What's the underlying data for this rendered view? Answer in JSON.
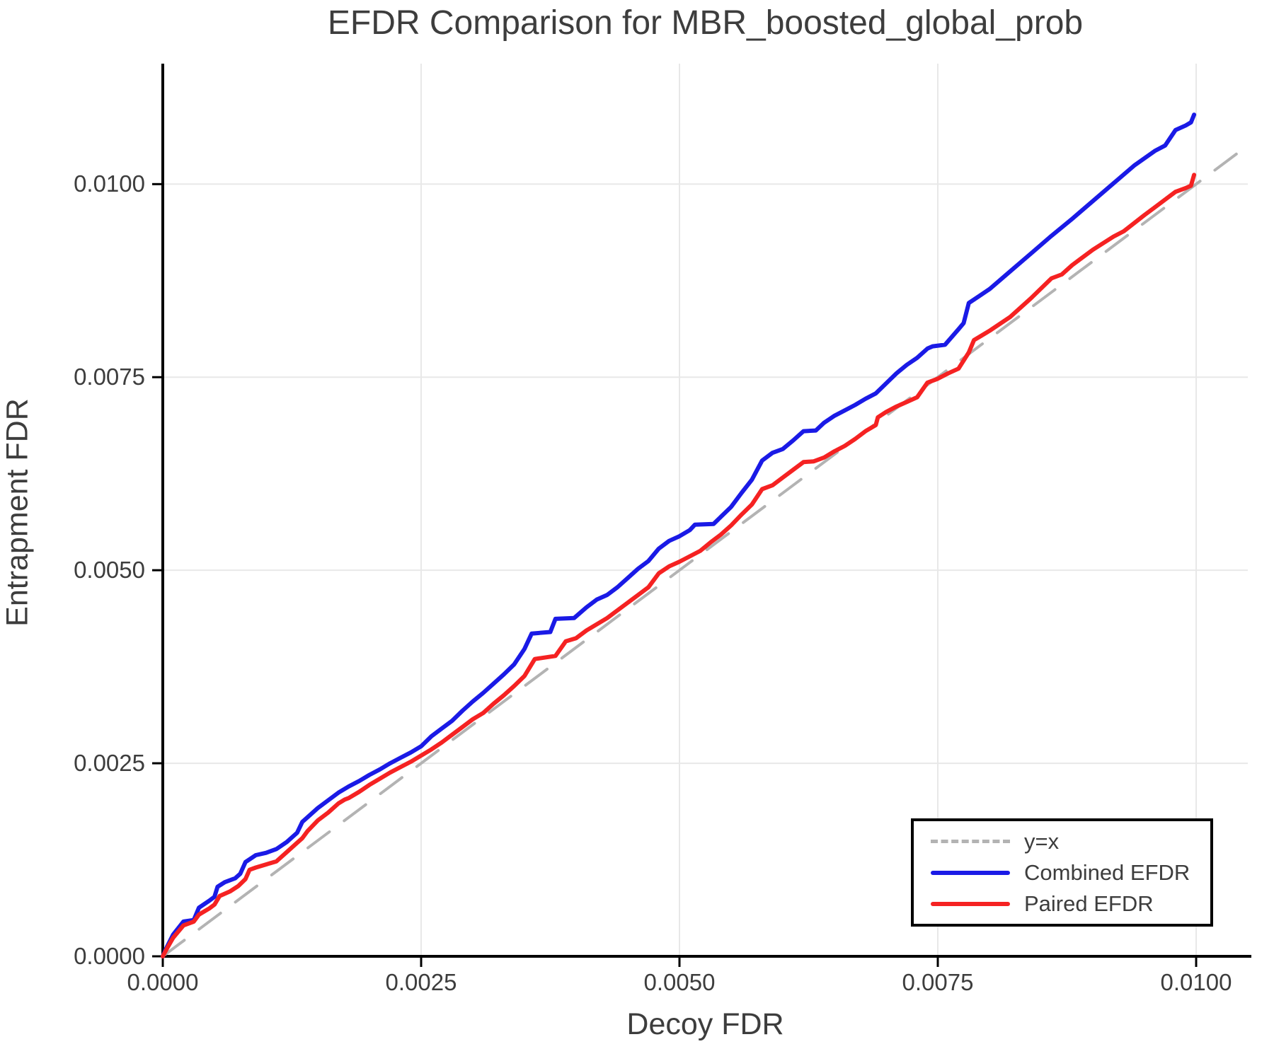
{
  "page": {
    "background": "#ffffff"
  },
  "colors": {
    "text": "#3d3d3d",
    "grid": "#e8e8e8",
    "spine": "#000000",
    "identity_line": "#b3b3b3",
    "combined_efdr": "#1a1ae6",
    "paired_efdr": "#f52222"
  },
  "chart_data": {
    "type": "line",
    "title": "EFDR Comparison for MBR_boosted_global_prob",
    "xlabel": "Decoy FDR",
    "ylabel": "Entrapment FDR",
    "xlim": [
      0,
      0.0105
    ],
    "ylim": [
      0,
      0.01156
    ],
    "grid": true,
    "xticks": {
      "values": [
        0,
        0.0025,
        0.005,
        0.0075,
        0.01
      ],
      "labels": [
        "0.0000",
        "0.0025",
        "0.0050",
        "0.0075",
        "0.0100"
      ]
    },
    "yticks": {
      "values": [
        0,
        0.0025,
        0.005,
        0.0075,
        0.01
      ],
      "labels": [
        "0.0000",
        "0.0025",
        "0.0050",
        "0.0075",
        "0.0100"
      ]
    },
    "legend": {
      "position": "lower right",
      "entries": [
        {
          "label": "y=x",
          "color": "#b3b3b3",
          "style": "dashed"
        },
        {
          "label": "Combined EFDR",
          "color": "#1a1ae6",
          "style": "solid"
        },
        {
          "label": "Paired EFDR",
          "color": "#f52222",
          "style": "solid"
        }
      ]
    },
    "series": [
      {
        "name": "y=x",
        "color": "#b3b3b3",
        "style": "dashed",
        "width": 4,
        "points": [
          [
            0,
            0
          ],
          [
            0.0105,
            0.0105
          ]
        ]
      },
      {
        "name": "Combined EFDR",
        "color": "#1a1ae6",
        "style": "solid",
        "width": 6,
        "points": [
          [
            0,
            0
          ],
          [
            4e-05,
            0.00012
          ],
          [
            0.0001,
            0.00028
          ],
          [
            0.0002,
            0.00045
          ],
          [
            0.0003,
            0.00047
          ],
          [
            0.00035,
            0.00063
          ],
          [
            0.00045,
            0.00072
          ],
          [
            0.0005,
            0.00077
          ],
          [
            0.00053,
            0.0009
          ],
          [
            0.0006,
            0.00096
          ],
          [
            0.0007,
            0.00101
          ],
          [
            0.00075,
            0.00107
          ],
          [
            0.0008,
            0.00122
          ],
          [
            0.0009,
            0.00131
          ],
          [
            0.001,
            0.00134
          ],
          [
            0.0011,
            0.00139
          ],
          [
            0.0012,
            0.00148
          ],
          [
            0.0013,
            0.0016
          ],
          [
            0.00135,
            0.00174
          ],
          [
            0.0014,
            0.0018
          ],
          [
            0.0015,
            0.00192
          ],
          [
            0.0016,
            0.00202
          ],
          [
            0.0017,
            0.00212
          ],
          [
            0.0018,
            0.0022
          ],
          [
            0.0019,
            0.00227
          ],
          [
            0.002,
            0.00235
          ],
          [
            0.0021,
            0.00242
          ],
          [
            0.0022,
            0.0025
          ],
          [
            0.0023,
            0.00257
          ],
          [
            0.0024,
            0.00264
          ],
          [
            0.0025,
            0.00272
          ],
          [
            0.0026,
            0.00285
          ],
          [
            0.0027,
            0.00295
          ],
          [
            0.0028,
            0.00305
          ],
          [
            0.0029,
            0.00318
          ],
          [
            0.003,
            0.0033
          ],
          [
            0.0031,
            0.00341
          ],
          [
            0.0032,
            0.00353
          ],
          [
            0.0033,
            0.00365
          ],
          [
            0.0034,
            0.00378
          ],
          [
            0.0035,
            0.00398
          ],
          [
            0.00357,
            0.00418
          ],
          [
            0.00375,
            0.0042
          ],
          [
            0.0038,
            0.00437
          ],
          [
            0.00398,
            0.00438
          ],
          [
            0.0041,
            0.00452
          ],
          [
            0.0042,
            0.00462
          ],
          [
            0.0043,
            0.00468
          ],
          [
            0.0044,
            0.00478
          ],
          [
            0.0045,
            0.0049
          ],
          [
            0.0046,
            0.00502
          ],
          [
            0.0047,
            0.00512
          ],
          [
            0.0048,
            0.00528
          ],
          [
            0.0049,
            0.00538
          ],
          [
            0.005,
            0.00544
          ],
          [
            0.0051,
            0.00552
          ],
          [
            0.00515,
            0.00559
          ],
          [
            0.00533,
            0.0056
          ],
          [
            0.0055,
            0.00582
          ],
          [
            0.0056,
            0.006
          ],
          [
            0.0057,
            0.00617
          ],
          [
            0.0058,
            0.00642
          ],
          [
            0.0059,
            0.00652
          ],
          [
            0.006,
            0.00657
          ],
          [
            0.0061,
            0.00668
          ],
          [
            0.0062,
            0.0068
          ],
          [
            0.00632,
            0.00681
          ],
          [
            0.0064,
            0.00691
          ],
          [
            0.0065,
            0.007
          ],
          [
            0.0066,
            0.00707
          ],
          [
            0.0067,
            0.00714
          ],
          [
            0.0068,
            0.00722
          ],
          [
            0.0069,
            0.00729
          ],
          [
            0.007,
            0.00742
          ],
          [
            0.0071,
            0.00755
          ],
          [
            0.0072,
            0.00766
          ],
          [
            0.0073,
            0.00775
          ],
          [
            0.0074,
            0.00787
          ],
          [
            0.00745,
            0.0079
          ],
          [
            0.00757,
            0.00792
          ],
          [
            0.0077,
            0.00812
          ],
          [
            0.00775,
            0.0082
          ],
          [
            0.0078,
            0.00846
          ],
          [
            0.0079,
            0.00855
          ],
          [
            0.008,
            0.00864
          ],
          [
            0.0082,
            0.00887
          ],
          [
            0.0084,
            0.0091
          ],
          [
            0.0086,
            0.00933
          ],
          [
            0.0088,
            0.00955
          ],
          [
            0.009,
            0.00978
          ],
          [
            0.0092,
            0.01001
          ],
          [
            0.0094,
            0.01024
          ],
          [
            0.0096,
            0.01043
          ],
          [
            0.0097,
            0.0105
          ],
          [
            0.0098,
            0.0107
          ],
          [
            0.0099,
            0.01076
          ],
          [
            0.00995,
            0.0108
          ],
          [
            0.00998,
            0.0109
          ]
        ]
      },
      {
        "name": "Paired EFDR",
        "color": "#f52222",
        "style": "solid",
        "width": 6,
        "points": [
          [
            0,
            0
          ],
          [
            4e-05,
            0.0001
          ],
          [
            0.0001,
            0.00024
          ],
          [
            0.0002,
            0.0004
          ],
          [
            0.0003,
            0.00045
          ],
          [
            0.00035,
            0.00054
          ],
          [
            0.00045,
            0.00062
          ],
          [
            0.0005,
            0.00067
          ],
          [
            0.00055,
            0.00078
          ],
          [
            0.00065,
            0.00084
          ],
          [
            0.00073,
            0.00091
          ],
          [
            0.0008,
            0.001
          ],
          [
            0.00084,
            0.00112
          ],
          [
            0.0009,
            0.00115
          ],
          [
            0.001,
            0.00119
          ],
          [
            0.0011,
            0.00123
          ],
          [
            0.0012,
            0.00135
          ],
          [
            0.0013,
            0.00147
          ],
          [
            0.00135,
            0.00153
          ],
          [
            0.0014,
            0.00162
          ],
          [
            0.0015,
            0.00176
          ],
          [
            0.0016,
            0.00186
          ],
          [
            0.0017,
            0.00198
          ],
          [
            0.00176,
            0.00203
          ],
          [
            0.0018,
            0.00205
          ],
          [
            0.0019,
            0.00213
          ],
          [
            0.002,
            0.00222
          ],
          [
            0.0021,
            0.0023
          ],
          [
            0.0022,
            0.00238
          ],
          [
            0.0023,
            0.00245
          ],
          [
            0.0024,
            0.00252
          ],
          [
            0.0025,
            0.0026
          ],
          [
            0.0026,
            0.00268
          ],
          [
            0.0027,
            0.00277
          ],
          [
            0.0028,
            0.00287
          ],
          [
            0.0029,
            0.00297
          ],
          [
            0.003,
            0.00307
          ],
          [
            0.0031,
            0.00315
          ],
          [
            0.0032,
            0.00327
          ],
          [
            0.0033,
            0.00338
          ],
          [
            0.0034,
            0.0035
          ],
          [
            0.0035,
            0.00363
          ],
          [
            0.0036,
            0.00385
          ],
          [
            0.0038,
            0.00389
          ],
          [
            0.0039,
            0.00408
          ],
          [
            0.004,
            0.00412
          ],
          [
            0.0041,
            0.00422
          ],
          [
            0.0042,
            0.0043
          ],
          [
            0.0043,
            0.00438
          ],
          [
            0.0044,
            0.00448
          ],
          [
            0.0045,
            0.00458
          ],
          [
            0.0046,
            0.00468
          ],
          [
            0.0047,
            0.00478
          ],
          [
            0.0048,
            0.00496
          ],
          [
            0.0049,
            0.00505
          ],
          [
            0.005,
            0.00511
          ],
          [
            0.0052,
            0.00525
          ],
          [
            0.0053,
            0.00536
          ],
          [
            0.0054,
            0.00546
          ],
          [
            0.0055,
            0.00558
          ],
          [
            0.0056,
            0.00572
          ],
          [
            0.0057,
            0.00585
          ],
          [
            0.0058,
            0.00605
          ],
          [
            0.0059,
            0.0061
          ],
          [
            0.006,
            0.0062
          ],
          [
            0.0061,
            0.0063
          ],
          [
            0.0062,
            0.0064
          ],
          [
            0.0063,
            0.00641
          ],
          [
            0.0064,
            0.00646
          ],
          [
            0.0065,
            0.00654
          ],
          [
            0.0066,
            0.00661
          ],
          [
            0.0067,
            0.0067
          ],
          [
            0.0068,
            0.0068
          ],
          [
            0.0069,
            0.00688
          ],
          [
            0.00692,
            0.00698
          ],
          [
            0.007,
            0.00705
          ],
          [
            0.0071,
            0.00712
          ],
          [
            0.0072,
            0.00718
          ],
          [
            0.0073,
            0.00724
          ],
          [
            0.0074,
            0.00743
          ],
          [
            0.0075,
            0.00748
          ],
          [
            0.0076,
            0.00755
          ],
          [
            0.0077,
            0.00761
          ],
          [
            0.0078,
            0.00782
          ],
          [
            0.00785,
            0.00798
          ],
          [
            0.0079,
            0.00802
          ],
          [
            0.008,
            0.0081
          ],
          [
            0.0082,
            0.00828
          ],
          [
            0.0084,
            0.00852
          ],
          [
            0.0086,
            0.00878
          ],
          [
            0.0087,
            0.00883
          ],
          [
            0.0088,
            0.00895
          ],
          [
            0.009,
            0.00915
          ],
          [
            0.0092,
            0.00932
          ],
          [
            0.0093,
            0.00939
          ],
          [
            0.0095,
            0.0096
          ],
          [
            0.0096,
            0.0097
          ],
          [
            0.0097,
            0.0098
          ],
          [
            0.0098,
            0.0099
          ],
          [
            0.0099,
            0.00995
          ],
          [
            0.00995,
            0.00998
          ],
          [
            0.00998,
            0.01012
          ]
        ]
      }
    ]
  }
}
